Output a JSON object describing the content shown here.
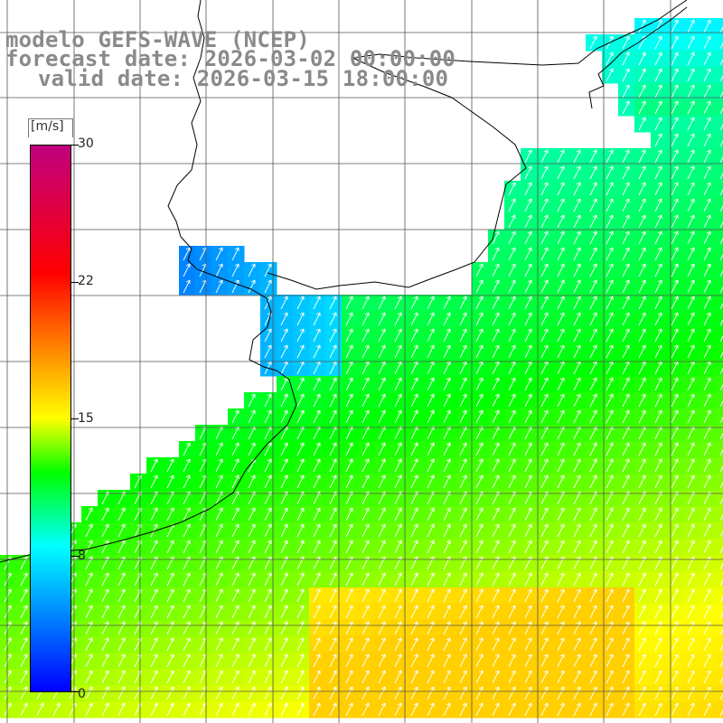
{
  "header": {
    "line1": "modelo GEFS-WAVE (NCEP)",
    "line2": "forecast date: 2026-03-02 00:00:00",
    "line3": "valid date: 2026-03-15 18:00:00"
  },
  "colorbar": {
    "unit": "[m/s]",
    "ticks": [
      "30",
      "22",
      "15",
      "8",
      "0"
    ],
    "min": 0,
    "max": 30
  },
  "colors": {
    "land": "#ffffff",
    "coast": "#000000",
    "grid": "#555555",
    "arrow": "#ffffff",
    "label": "#8a8a8a"
  }
}
